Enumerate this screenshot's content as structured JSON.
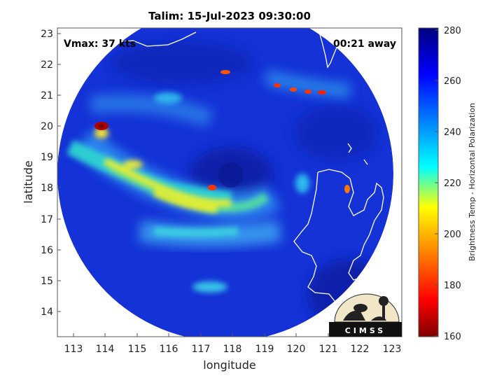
{
  "title": "Talim: 15-Jul-2023 09:30:00",
  "vmax_text": "Vmax: 37 kts",
  "away_text": "00:21 away",
  "logo_text": "CIMSS",
  "colorbar": {
    "label": "Brightness Temp - Horizontal Polarization",
    "ticks": [
      "280",
      "260",
      "240",
      "220",
      "200",
      "180",
      "160"
    ]
  },
  "chart_data": {
    "type": "heatmap",
    "title": "Talim: 15-Jul-2023 09:30:00",
    "xlabel": "longitude",
    "ylabel": "latitude",
    "xlim": [
      112.5,
      123
    ],
    "ylim": [
      13.2,
      23.2
    ],
    "x_ticks": [
      "113",
      "114",
      "115",
      "116",
      "117",
      "118",
      "119",
      "120",
      "121",
      "122",
      "123"
    ],
    "y_ticks": [
      "14",
      "15",
      "16",
      "17",
      "18",
      "19",
      "20",
      "21",
      "22",
      "23"
    ],
    "colorbar_range": [
      160,
      280
    ],
    "colormap": [
      "#7f0000",
      "#ff0000",
      "#ff9900",
      "#ffff00",
      "#00ffff",
      "#0080ff",
      "#0000ff",
      "#00007f"
    ],
    "colors": {
      "background_blue": "#1432d6",
      "deep_blue": "#0a1fa0",
      "coast": "#ffffff"
    }
  }
}
